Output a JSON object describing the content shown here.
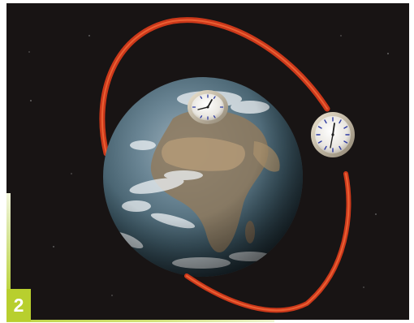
{
  "figure": {
    "number_label": "2"
  },
  "scene": {
    "objects": [
      "earth",
      "orbit-ring",
      "ground-clock",
      "satellite-clock"
    ],
    "colors": {
      "background": "#181414",
      "orbit": "#e0411e",
      "accent": "#b8cf2e"
    }
  }
}
